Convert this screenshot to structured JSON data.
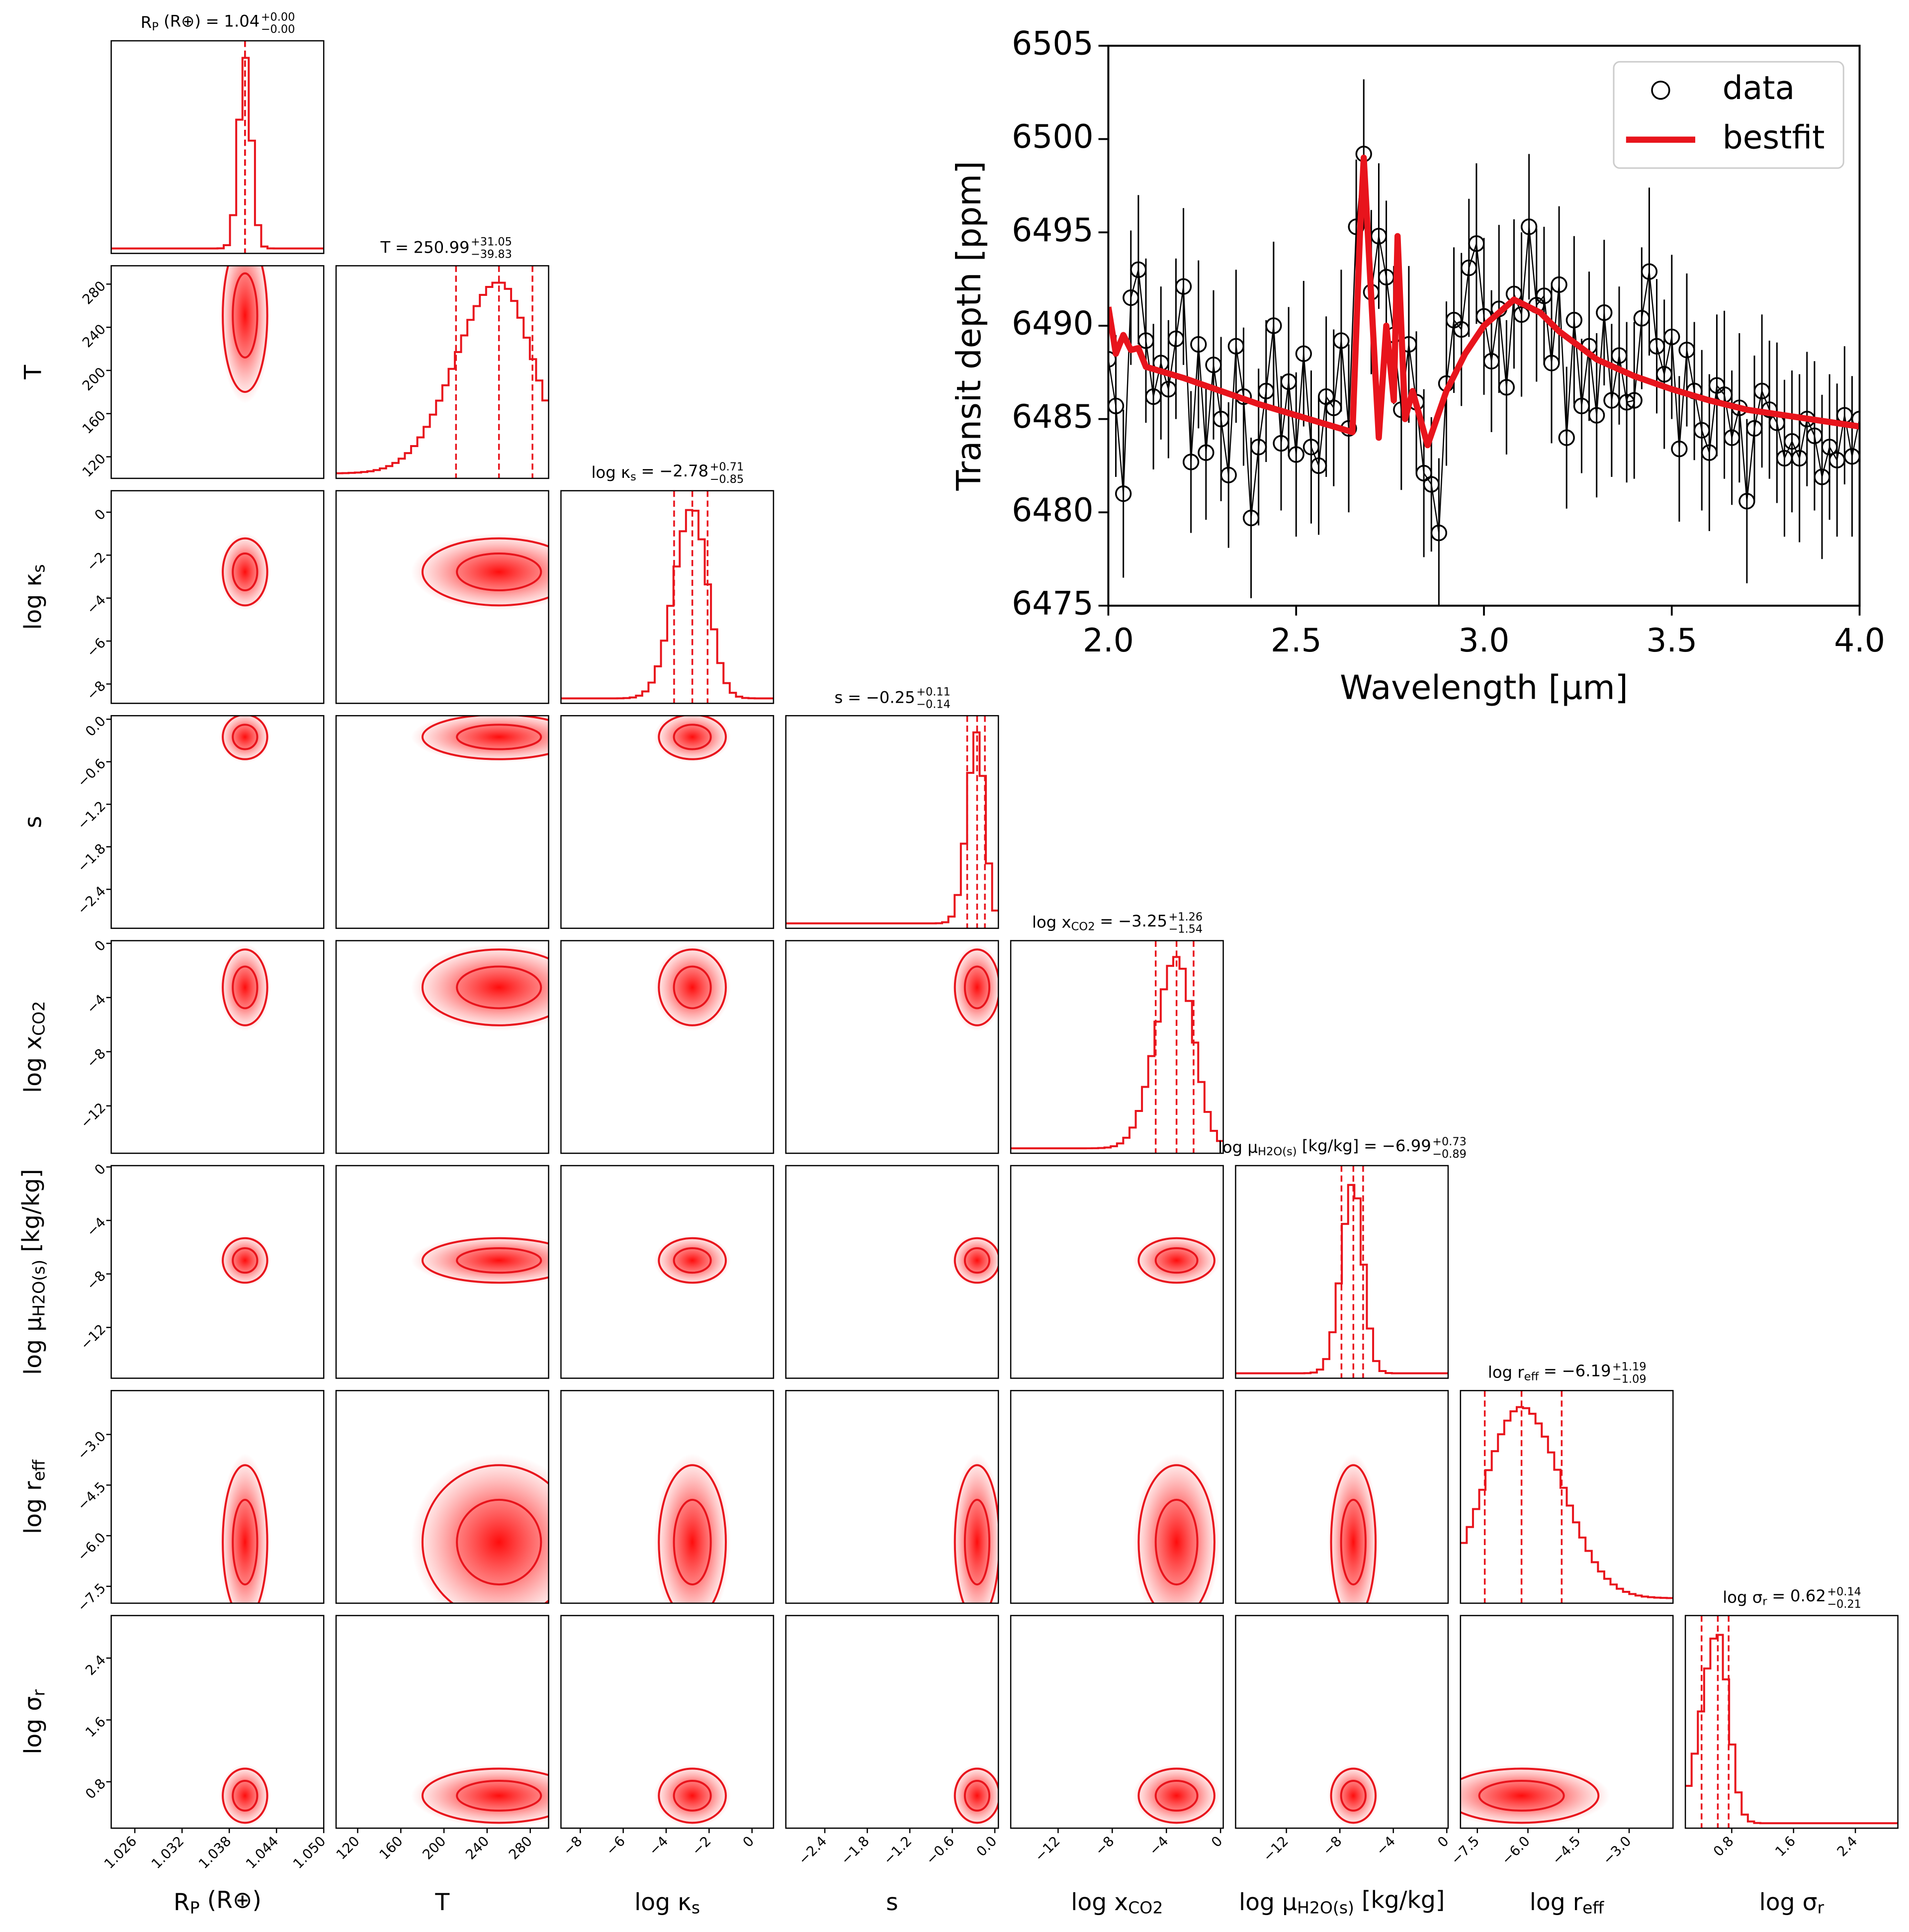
{
  "chart_data": [
    {
      "type": "corner",
      "title_separator": "=",
      "color": "#e8141c",
      "frame_color": "#000000",
      "params": [
        {
          "label": {
            "base": "R",
            "sub": "P",
            "suffix": " (R⊕)"
          },
          "median": 1.04,
          "plus": {
            "value": 0,
            "label": "+0.00"
          },
          "minus": {
            "value": 0,
            "label": "−0.00"
          },
          "lim": [
            1.023,
            1.05
          ],
          "ticks": [
            1.026,
            1.032,
            1.038,
            1.044,
            {
              "value": 1.05,
              "label": "1.050"
            }
          ]
        },
        {
          "label": {
            "base": "T"
          },
          "median": 250.99,
          "plus": {
            "value": 31.05,
            "label": "+31.05"
          },
          "minus": {
            "value": 39.83,
            "label": "−39.83"
          },
          "lim": [
            100,
            297
          ],
          "ticks": [
            120,
            160,
            200,
            240,
            280
          ]
        },
        {
          "label": {
            "base": "log κ",
            "sub": "s"
          },
          "median": {
            "value": -2.78,
            "label": "−2.78"
          },
          "plus": {
            "value": 0.71,
            "label": "+0.71"
          },
          "minus": {
            "value": 0.85,
            "label": "−0.85"
          },
          "lim": [
            -8.9,
            1
          ],
          "ticks": [
            {
              "value": -8,
              "label": "−8"
            },
            {
              "value": -6,
              "label": "−6"
            },
            {
              "value": -4,
              "label": "−4"
            },
            {
              "value": -2,
              "label": "−2"
            },
            0
          ]
        },
        {
          "label": {
            "base": "s"
          },
          "median": {
            "value": -0.25,
            "label": "−0.25"
          },
          "plus": {
            "value": 0.11,
            "label": "+0.11"
          },
          "minus": {
            "value": 0.14,
            "label": "−0.14"
          },
          "lim": [
            -2.95,
            0.05
          ],
          "ticks": [
            {
              "value": -2.4,
              "label": "−2.4"
            },
            {
              "value": -1.8,
              "label": "−1.8"
            },
            {
              "value": -1.2,
              "label": "−1.2"
            },
            {
              "value": -0.6,
              "label": "−0.6"
            },
            {
              "value": 0,
              "label": "0.0"
            }
          ]
        },
        {
          "label": {
            "base": "log x",
            "sub": "CO2"
          },
          "median": {
            "value": -3.25,
            "label": "−3.25"
          },
          "plus": {
            "value": 1.26,
            "label": "+1.26"
          },
          "minus": {
            "value": 1.54,
            "label": "−1.54"
          },
          "lim": [
            -15.5,
            0.2
          ],
          "ticks": [
            {
              "value": -12,
              "label": "−12"
            },
            {
              "value": -8,
              "label": "−8"
            },
            {
              "value": -4,
              "label": "−4"
            },
            0
          ]
        },
        {
          "label": {
            "base": "log μ",
            "sub": "H2O(s)",
            "suffix": " [kg/kg]"
          },
          "median": {
            "value": -6.99,
            "label": "−6.99"
          },
          "plus": {
            "value": 0.73,
            "label": "+0.73"
          },
          "minus": {
            "value": 0.89,
            "label": "−0.89"
          },
          "lim": [
            -15.8,
            0.1
          ],
          "ticks": [
            {
              "value": -12,
              "label": "−12"
            },
            {
              "value": -8,
              "label": "−8"
            },
            {
              "value": -4,
              "label": "−4"
            },
            0
          ]
        },
        {
          "label": {
            "base": "log r",
            "sub": "eff"
          },
          "median": {
            "value": -6.19,
            "label": "−6.19"
          },
          "plus": {
            "value": 1.19,
            "label": "+1.19"
          },
          "minus": {
            "value": 1.09,
            "label": "−1.09"
          },
          "lim": [
            -8,
            -1.7
          ],
          "ticks": [
            {
              "value": -7.5,
              "label": "−7.5"
            },
            {
              "value": -6,
              "label": "−6.0"
            },
            {
              "value": -4.5,
              "label": "−4.5"
            },
            {
              "value": -3,
              "label": "−3.0"
            }
          ]
        },
        {
          "label": {
            "base": "log σ",
            "sub": "r"
          },
          "median": 0.62,
          "plus": {
            "value": 0.14,
            "label": "+0.14"
          },
          "minus": {
            "value": 0.21,
            "label": "−0.21"
          },
          "lim": [
            0.2,
            2.95
          ],
          "ticks": [
            0.8,
            1.6,
            2.4
          ]
        }
      ]
    },
    {
      "type": "spectrum",
      "xlabel": "Wavelength [μm]",
      "ylabel": "Transit depth [ppm]",
      "legend": "upper right",
      "xlim": [
        2,
        4
      ],
      "xticks": [
        {
          "value": 2,
          "label": "2.0"
        },
        2.5,
        {
          "value": 3,
          "label": "3.0"
        },
        3.5,
        {
          "value": 4,
          "label": "4.0"
        }
      ],
      "ylim": [
        6475,
        6505
      ],
      "yticks": [
        6475,
        6480,
        6485,
        6490,
        6495,
        6500,
        6505
      ],
      "series": [
        {
          "name": "data",
          "color": "#000000",
          "x": [
            2.0,
            2.02,
            2.04,
            2.06,
            2.08,
            2.1,
            2.12,
            2.14,
            2.16,
            2.18,
            2.2,
            2.22,
            2.24,
            2.26,
            2.28,
            2.3,
            2.32,
            2.34,
            2.36,
            2.38,
            2.4,
            2.42,
            2.44,
            2.46,
            2.48,
            2.5,
            2.52,
            2.54,
            2.56,
            2.58,
            2.6,
            2.62,
            2.64,
            2.66,
            2.68,
            2.7,
            2.72,
            2.74,
            2.76,
            2.78,
            2.8,
            2.82,
            2.84,
            2.86,
            2.88,
            2.9,
            2.92,
            2.94,
            2.96,
            2.98,
            3.0,
            3.02,
            3.04,
            3.06,
            3.08,
            3.1,
            3.12,
            3.14,
            3.16,
            3.18,
            3.2,
            3.22,
            3.24,
            3.26,
            3.28,
            3.3,
            3.32,
            3.34,
            3.36,
            3.38,
            3.4,
            3.42,
            3.44,
            3.46,
            3.48,
            3.5,
            3.52,
            3.54,
            3.56,
            3.58,
            3.6,
            3.62,
            3.64,
            3.66,
            3.68,
            3.7,
            3.72,
            3.74,
            3.76,
            3.78,
            3.8,
            3.82,
            3.84,
            3.86,
            3.88,
            3.9,
            3.92,
            3.94,
            3.96,
            3.98,
            4.0
          ],
          "values": [
            6488.2,
            6485.7,
            6481.0,
            6491.5,
            6493.0,
            6489.2,
            6486.2,
            6488.0,
            6486.6,
            6489.3,
            6492.1,
            6482.7,
            6489.0,
            6483.2,
            6487.9,
            6485.0,
            6482.0,
            6488.9,
            6486.2,
            6479.7,
            6483.5,
            6486.5,
            6490.0,
            6483.7,
            6487.0,
            6483.1,
            6488.5,
            6483.5,
            6482.5,
            6486.2,
            6485.6,
            6489.2,
            6484.5,
            6495.3,
            6499.2,
            6491.8,
            6494.8,
            6492.6,
            6489.5,
            6485.5,
            6489.0,
            6485.9,
            6482.1,
            6481.5,
            6478.9,
            6486.9,
            6490.3,
            6489.8,
            6493.1,
            6494.4,
            6490.5,
            6488.1,
            6490.9,
            6486.7,
            6491.7,
            6490.6,
            6495.3,
            6491.1,
            6491.6,
            6488.0,
            6492.2,
            6484.0,
            6490.3,
            6485.7,
            6488.9,
            6485.2,
            6490.7,
            6486.0,
            6488.4,
            6485.9,
            6486.0,
            6490.4,
            6492.9,
            6488.9,
            6487.4,
            6489.4,
            6483.4,
            6488.7,
            6486.5,
            6484.4,
            6483.2,
            6486.8,
            6486.3,
            6484.0,
            6485.6,
            6480.6,
            6484.5,
            6486.5,
            6485.5,
            6484.8,
            6482.9,
            6483.8,
            6482.9,
            6485.0,
            6484.1,
            6481.9,
            6483.5,
            6482.8,
            6485.2,
            6483.0,
            6485.0
          ],
          "errors": [
            4.2,
            3.8,
            4.5,
            3.6,
            4.0,
            4.4,
            3.9,
            4.1,
            3.7,
            4.3,
            4.2,
            3.8,
            4.5,
            3.6,
            4.0,
            4.4,
            3.9,
            4.1,
            3.7,
            4.3,
            4.2,
            3.8,
            4.5,
            3.6,
            4.0,
            4.4,
            3.9,
            4.1,
            3.7,
            4.3,
            4.2,
            3.8,
            4.5,
            3.6,
            4.0,
            4.4,
            3.9,
            4.1,
            3.7,
            4.3,
            4.2,
            3.8,
            4.5,
            3.6,
            4.0,
            4.4,
            3.9,
            4.1,
            3.7,
            4.3,
            4.2,
            3.8,
            4.5,
            3.6,
            4.0,
            4.4,
            3.9,
            4.1,
            3.7,
            4.3,
            4.2,
            3.8,
            4.5,
            3.6,
            4.0,
            4.4,
            3.9,
            4.1,
            3.7,
            4.3,
            4.2,
            3.8,
            4.5,
            3.6,
            4.0,
            4.4,
            3.9,
            4.1,
            3.7,
            4.3,
            4.2,
            3.8,
            4.5,
            3.6,
            4.0,
            4.4,
            3.9,
            4.1,
            3.7,
            4.3,
            4.2,
            3.8,
            4.5,
            3.6,
            4.0,
            4.4,
            3.9,
            4.1,
            3.7,
            4.3,
            4.0
          ]
        },
        {
          "name": "bestfit",
          "color": "#e8141c",
          "x": [
            2.0,
            2.02,
            2.04,
            2.06,
            2.08,
            2.1,
            2.2,
            2.3,
            2.4,
            2.5,
            2.6,
            2.65,
            2.67,
            2.68,
            2.7,
            2.72,
            2.74,
            2.76,
            2.77,
            2.79,
            2.81,
            2.85,
            2.9,
            2.95,
            3.0,
            3.08,
            3.15,
            3.2,
            3.3,
            3.4,
            3.5,
            3.6,
            3.7,
            3.8,
            3.9,
            4.0
          ],
          "values": [
            6491,
            6488.5,
            6489.5,
            6488.7,
            6488.8,
            6487.8,
            6487.2,
            6486.5,
            6485.8,
            6485.2,
            6484.6,
            6484.3,
            6495,
            6499,
            6491.5,
            6484,
            6490,
            6486,
            6494.8,
            6485,
            6486.5,
            6483.6,
            6486.5,
            6488.5,
            6490,
            6491.4,
            6490.7,
            6489.7,
            6488.2,
            6487.3,
            6486.6,
            6486,
            6485.5,
            6485.2,
            6484.9,
            6484.6
          ]
        }
      ]
    }
  ]
}
